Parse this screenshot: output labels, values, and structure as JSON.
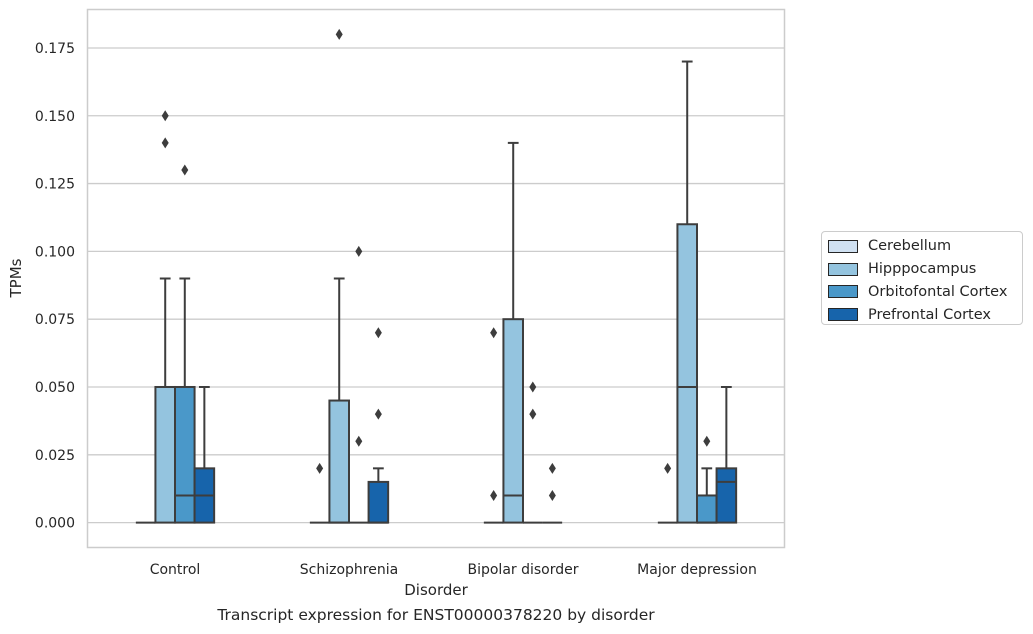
{
  "chart_data": {
    "type": "box",
    "title": "",
    "caption": "Transcript expression for ENST00000378220 by disorder",
    "xlabel": "Disorder",
    "ylabel": "TPMs",
    "ylim": [
      -0.009,
      0.189
    ],
    "yticks": [
      "0.000",
      "0.025",
      "0.050",
      "0.075",
      "0.100",
      "0.125",
      "0.150",
      "0.175"
    ],
    "grid": "horizontal",
    "legend_position": "right",
    "categories": [
      "Control",
      "Schizophrenia",
      "Bipolar disorder",
      "Major depression"
    ],
    "series": [
      {
        "name": "Cerebellum",
        "color": "#d0e1f2",
        "boxes": [
          {
            "q1": 0,
            "median": 0,
            "q3": 0,
            "whisker_low": 0,
            "whisker_high": 0,
            "outliers": []
          },
          {
            "q1": 0,
            "median": 0,
            "q3": 0,
            "whisker_low": 0,
            "whisker_high": 0,
            "outliers": [
              0.02
            ]
          },
          {
            "q1": 0,
            "median": 0,
            "q3": 0,
            "whisker_low": 0,
            "whisker_high": 0,
            "outliers": [
              0.07,
              0.01
            ]
          },
          {
            "q1": 0,
            "median": 0,
            "q3": 0,
            "whisker_low": 0,
            "whisker_high": 0,
            "outliers": [
              0.02
            ]
          }
        ]
      },
      {
        "name": "Hipppocampus",
        "color": "#94c4df",
        "boxes": [
          {
            "q1": 0,
            "median": 0.05,
            "q3": 0.05,
            "whisker_low": 0,
            "whisker_high": 0.09,
            "outliers": [
              0.15,
              0.14
            ]
          },
          {
            "q1": 0,
            "median": 0,
            "q3": 0.045,
            "whisker_low": 0,
            "whisker_high": 0.09,
            "outliers": [
              0.18
            ]
          },
          {
            "q1": 0,
            "median": 0.01,
            "q3": 0.075,
            "whisker_low": 0,
            "whisker_high": 0.14,
            "outliers": []
          },
          {
            "q1": 0,
            "median": 0.05,
            "q3": 0.11,
            "whisker_low": 0,
            "whisker_high": 0.17,
            "outliers": []
          }
        ]
      },
      {
        "name": "Orbitofontal Cortex",
        "color": "#4a98c9",
        "boxes": [
          {
            "q1": 0,
            "median": 0.01,
            "q3": 0.05,
            "whisker_low": 0,
            "whisker_high": 0.09,
            "outliers": [
              0.13
            ]
          },
          {
            "q1": 0,
            "median": 0,
            "q3": 0,
            "whisker_low": 0,
            "whisker_high": 0,
            "outliers": [
              0.1,
              0.03
            ]
          },
          {
            "q1": 0,
            "median": 0,
            "q3": 0,
            "whisker_low": 0,
            "whisker_high": 0,
            "outliers": [
              0.05,
              0.04
            ]
          },
          {
            "q1": 0,
            "median": 0,
            "q3": 0.01,
            "whisker_low": 0,
            "whisker_high": 0.02,
            "outliers": [
              0.03
            ]
          }
        ]
      },
      {
        "name": "Prefrontal Cortex",
        "color": "#1764ab",
        "boxes": [
          {
            "q1": 0,
            "median": 0.01,
            "q3": 0.02,
            "whisker_low": 0,
            "whisker_high": 0.05,
            "outliers": []
          },
          {
            "q1": 0,
            "median": 0,
            "q3": 0.015,
            "whisker_low": 0,
            "whisker_high": 0.02,
            "outliers": [
              0.07,
              0.04
            ]
          },
          {
            "q1": 0,
            "median": 0,
            "q3": 0,
            "whisker_low": 0,
            "whisker_high": 0,
            "outliers": [
              0.02,
              0.01
            ]
          },
          {
            "q1": 0,
            "median": 0.015,
            "q3": 0.02,
            "whisker_low": 0,
            "whisker_high": 0.05,
            "outliers": []
          }
        ]
      }
    ]
  }
}
